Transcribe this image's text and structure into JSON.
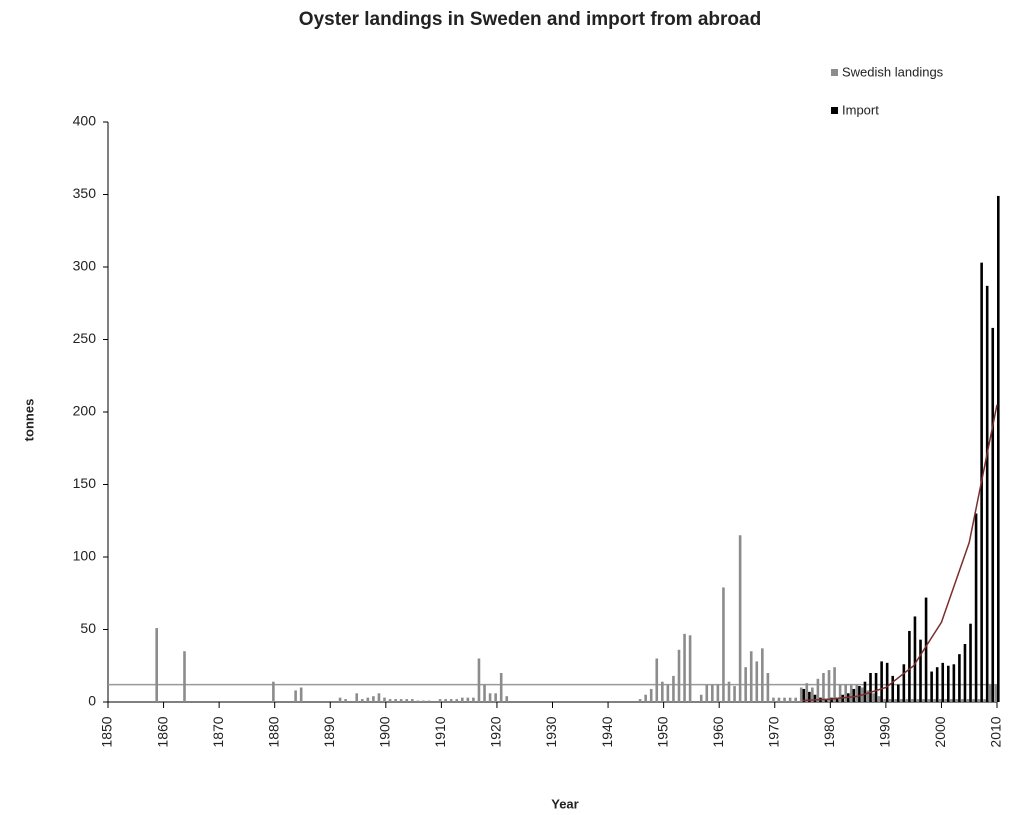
{
  "chart_data": {
    "type": "bar",
    "title": "Oyster landings in Sweden and import from abroad",
    "x_label": "Year",
    "y_label": "tonnes",
    "x": [
      1859,
      1864,
      1880,
      1884,
      1885,
      1892,
      1893,
      1895,
      1896,
      1897,
      1898,
      1899,
      1900,
      1901,
      1902,
      1903,
      1904,
      1905,
      1906,
      1907,
      1908,
      1910,
      1911,
      1912,
      1913,
      1914,
      1915,
      1916,
      1917,
      1918,
      1919,
      1920,
      1921,
      1922,
      1946,
      1947,
      1948,
      1949,
      1950,
      1951,
      1952,
      1953,
      1954,
      1955,
      1957,
      1958,
      1959,
      1960,
      1961,
      1962,
      1963,
      1964,
      1965,
      1966,
      1967,
      1968,
      1969,
      1970,
      1971,
      1972,
      1973,
      1974,
      1975,
      1976,
      1977,
      1978,
      1979,
      1980,
      1981,
      1982,
      1983,
      1984,
      1985,
      1986,
      1987,
      1988,
      1989,
      1990,
      1991,
      1992,
      1993,
      1994,
      1995,
      1996,
      1997,
      1998,
      1999,
      2000,
      2001,
      2002,
      2003,
      2004,
      2005,
      2006,
      2007,
      2008,
      2009,
      2010
    ],
    "series": [
      {
        "name": "Swedish landings",
        "color": "#8c8c8c",
        "values": [
          51,
          35,
          14,
          8,
          10,
          3,
          2,
          6,
          2,
          3,
          4,
          6,
          3,
          2,
          2,
          2,
          2,
          2,
          1,
          1,
          1,
          2,
          2,
          2,
          2,
          3,
          3,
          3,
          30,
          12,
          6,
          6,
          20,
          4,
          2,
          5,
          9,
          30,
          14,
          12,
          18,
          36,
          47,
          46,
          5,
          12,
          12,
          12,
          79,
          14,
          11,
          115,
          24,
          35,
          28,
          37,
          20,
          3,
          3,
          3,
          3,
          3,
          10,
          13,
          10,
          16,
          20,
          22,
          24,
          12,
          12,
          12,
          12,
          10,
          8,
          6,
          4,
          2,
          2,
          2,
          2,
          2,
          2,
          2,
          2,
          2,
          2,
          2,
          2,
          2,
          2,
          2,
          2,
          2,
          2,
          2,
          12,
          12
        ]
      },
      {
        "name": "Import",
        "color": "#000000",
        "values": [
          null,
          null,
          null,
          null,
          null,
          null,
          null,
          null,
          null,
          null,
          null,
          null,
          null,
          null,
          null,
          null,
          null,
          null,
          null,
          null,
          null,
          null,
          null,
          null,
          null,
          null,
          null,
          null,
          null,
          null,
          null,
          null,
          null,
          null,
          null,
          null,
          null,
          null,
          null,
          null,
          null,
          null,
          null,
          null,
          null,
          null,
          null,
          null,
          null,
          null,
          null,
          null,
          null,
          null,
          null,
          null,
          null,
          null,
          null,
          null,
          null,
          null,
          9,
          7,
          5,
          3,
          2,
          3,
          3,
          5,
          6,
          9,
          11,
          14,
          20,
          20,
          28,
          27,
          18,
          12,
          26,
          49,
          59,
          43,
          72,
          21,
          24,
          27,
          25,
          26,
          33,
          40,
          54,
          130,
          303,
          287,
          258,
          349
        ]
      }
    ],
    "reference_line": {
      "value": 12,
      "color": "#999999"
    },
    "trend": {
      "color": "#7b2f2f",
      "x": [
        1975,
        1980,
        1985,
        1990,
        1995,
        2000,
        2005,
        2010
      ],
      "values": [
        1,
        2,
        4,
        10,
        25,
        55,
        110,
        205
      ]
    },
    "xlim": [
      1850,
      2010
    ],
    "xticks": [
      1850,
      1860,
      1870,
      1880,
      1890,
      1900,
      1910,
      1920,
      1930,
      1940,
      1950,
      1960,
      1970,
      1980,
      1990,
      2000,
      2010
    ],
    "ylim": [
      0,
      400
    ],
    "yticks": [
      0,
      50,
      100,
      150,
      200,
      250,
      300,
      350,
      400
    ],
    "legend": "top-right"
  }
}
